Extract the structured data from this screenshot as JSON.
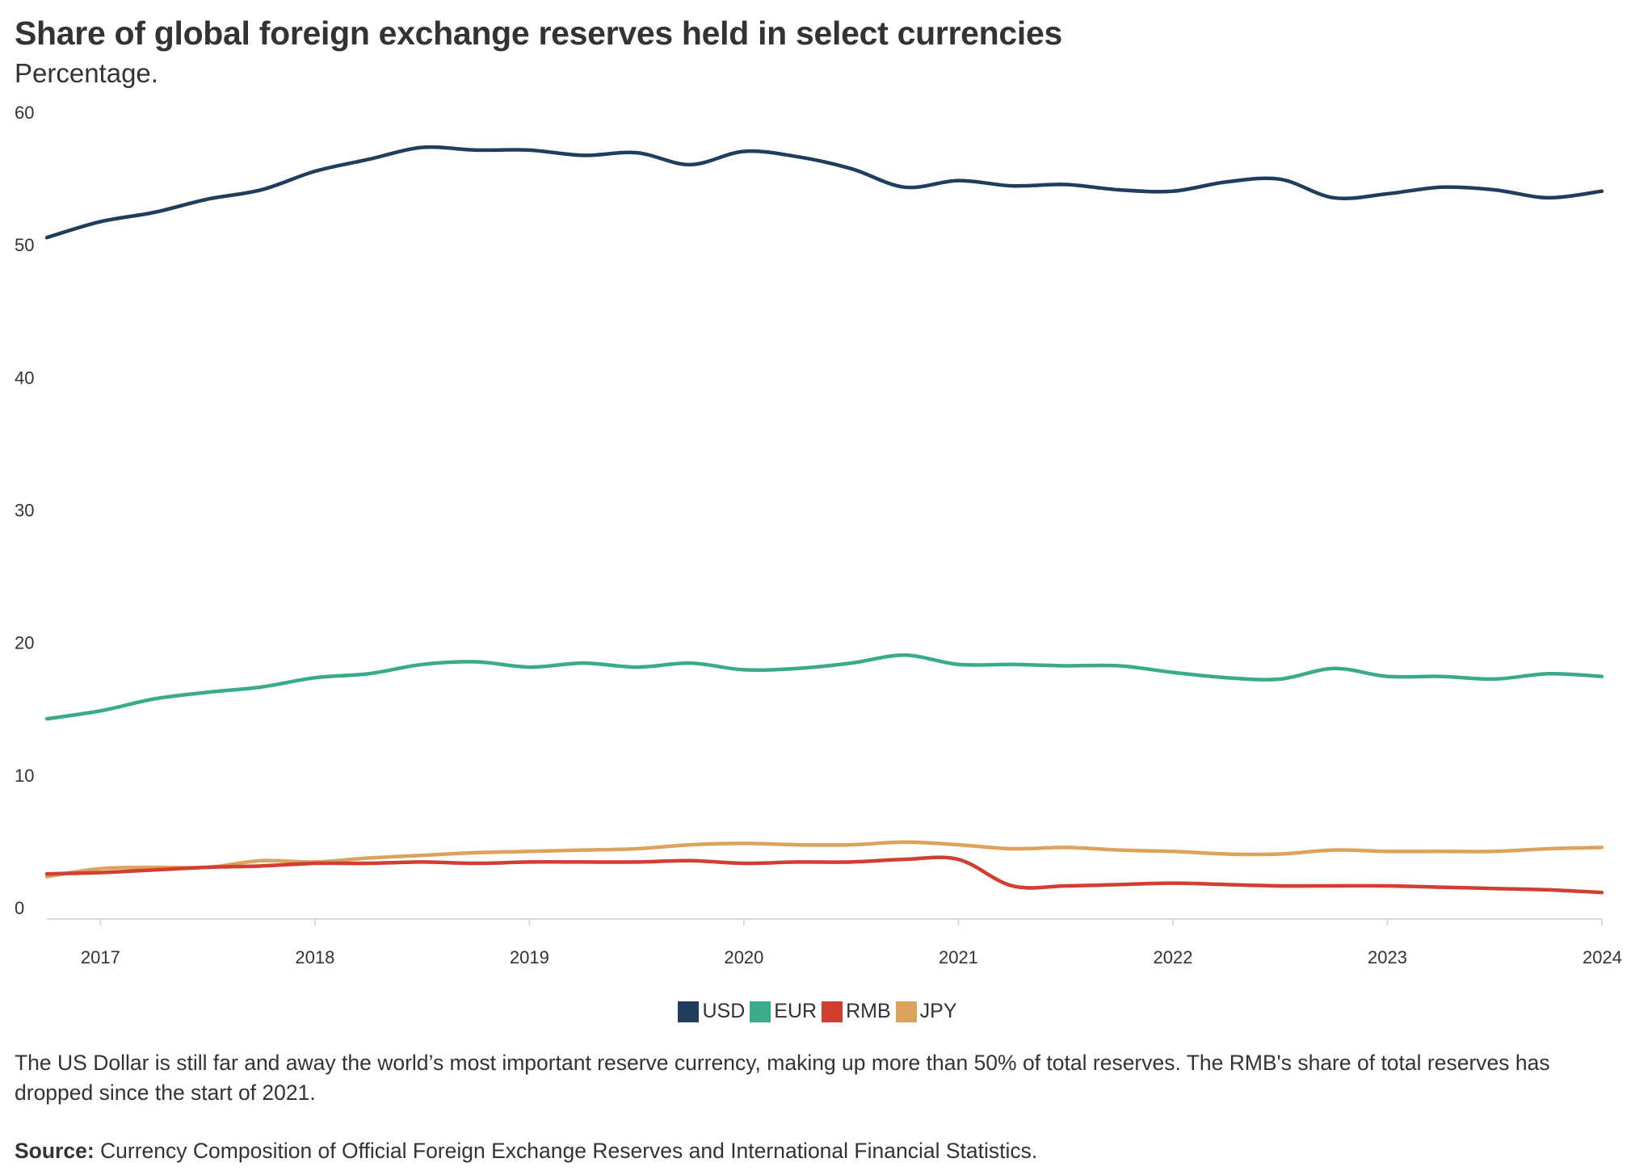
{
  "title": "Share of global foreign exchange reserves held in select currencies",
  "subtitle": "Percentage.",
  "description": "The US Dollar is still far and away the world’s most important reserve currency, making up more than 50% of total reserves. The RMB's share of total reserves has dropped since the start of 2021.",
  "source": {
    "label": "Source:",
    "text": " Currency Composition of Official Foreign Exchange Reserves and International Financial Statistics."
  },
  "legend": [
    {
      "name": "USD",
      "color": "#1f3d5c"
    },
    {
      "name": "EUR",
      "color": "#3aab8a"
    },
    {
      "name": "RMB",
      "color": "#d13f32"
    },
    {
      "name": "JPY",
      "color": "#dba35c"
    }
  ],
  "chart_data": {
    "type": "line",
    "title": "Share of global foreign exchange reserves held in select currencies",
    "ylabel": "Percentage.",
    "xlabel": "",
    "ylim": [
      0,
      60
    ],
    "xlim": [
      2016.75,
      2024
    ],
    "yticks": [
      "0",
      "10",
      "20",
      "30",
      "40",
      "50",
      "60"
    ],
    "xticks": [
      "2017",
      "2018",
      "2019",
      "2020",
      "2021",
      "2022",
      "2023",
      "2024"
    ],
    "grid": false,
    "legend_position": "bottom",
    "x": [
      2016.75,
      2017.0,
      2017.25,
      2017.5,
      2017.75,
      2018.0,
      2018.25,
      2018.5,
      2018.75,
      2019.0,
      2019.25,
      2019.5,
      2019.75,
      2020.0,
      2020.25,
      2020.5,
      2020.75,
      2021.0,
      2021.25,
      2021.5,
      2021.75,
      2022.0,
      2022.25,
      2022.5,
      2022.75,
      2023.0,
      2023.25,
      2023.5,
      2023.75,
      2024.0
    ],
    "series": [
      {
        "name": "USD",
        "color": "#1f3d5c",
        "values": [
          51.4,
          52.6,
          53.3,
          54.3,
          55.0,
          56.4,
          57.3,
          58.2,
          58.0,
          58.0,
          57.6,
          57.8,
          56.9,
          57.9,
          57.5,
          56.6,
          55.2,
          55.7,
          55.3,
          55.4,
          55.0,
          54.9,
          55.6,
          55.8,
          54.4,
          54.7,
          55.2,
          55.0,
          54.4,
          54.9
        ]
      },
      {
        "name": "EUR",
        "color": "#3aab8a",
        "values": [
          15.1,
          15.7,
          16.6,
          17.1,
          17.5,
          18.2,
          18.5,
          19.2,
          19.4,
          19.0,
          19.3,
          19.0,
          19.3,
          18.8,
          18.9,
          19.3,
          19.9,
          19.2,
          19.2,
          19.1,
          19.1,
          18.6,
          18.2,
          18.1,
          18.9,
          18.3,
          18.3,
          18.1,
          18.5,
          18.3
        ]
      },
      {
        "name": "RMB",
        "color": "#d13f32",
        "values": [
          3.4,
          3.5,
          3.7,
          3.9,
          4.0,
          4.2,
          4.2,
          4.3,
          4.2,
          4.3,
          4.3,
          4.3,
          4.4,
          4.2,
          4.3,
          4.3,
          4.5,
          4.5,
          2.5,
          2.5,
          2.6,
          2.7,
          2.6,
          2.5,
          2.5,
          2.5,
          2.4,
          2.3,
          2.2,
          2.0
        ]
      },
      {
        "name": "JPY",
        "color": "#dba35c",
        "values": [
          3.2,
          3.8,
          3.9,
          3.9,
          4.4,
          4.3,
          4.6,
          4.8,
          5.0,
          5.1,
          5.2,
          5.3,
          5.6,
          5.7,
          5.6,
          5.6,
          5.8,
          5.6,
          5.3,
          5.4,
          5.2,
          5.1,
          4.9,
          4.9,
          5.2,
          5.1,
          5.1,
          5.1,
          5.3,
          5.4
        ]
      }
    ]
  }
}
